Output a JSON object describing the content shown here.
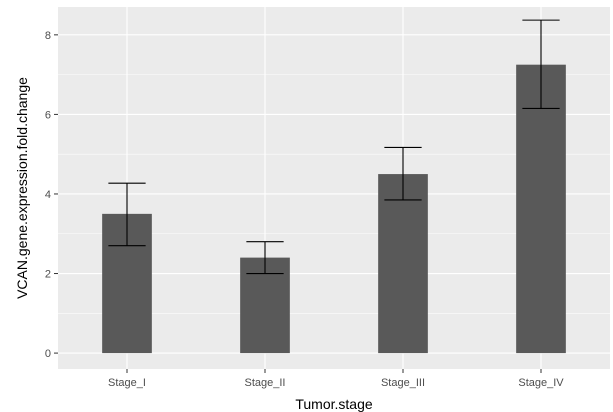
{
  "chart_data": {
    "type": "bar",
    "xlabel": "Tumor.stage",
    "ylabel": "VCAN.gene.expression.fold.change",
    "categories": [
      "Stage_I",
      "Stage_II",
      "Stage_III",
      "Stage_IV"
    ],
    "values": [
      3.5,
      2.4,
      4.5,
      7.25
    ],
    "error_low": [
      2.7,
      2.0,
      3.85,
      6.15
    ],
    "error_high": [
      4.27,
      2.8,
      5.17,
      8.37
    ],
    "ylim": [
      -0.4,
      8.7
    ],
    "yticks": [
      0,
      2,
      4,
      6,
      8
    ],
    "ytick_labels": [
      "0",
      "2",
      "4",
      "6",
      "8"
    ],
    "grid": true,
    "legend": "none",
    "colors": {
      "panel_background": "#ebebeb",
      "grid_major": "#ffffff",
      "bar_fill": "#595959",
      "error_bar": "#000000"
    }
  }
}
